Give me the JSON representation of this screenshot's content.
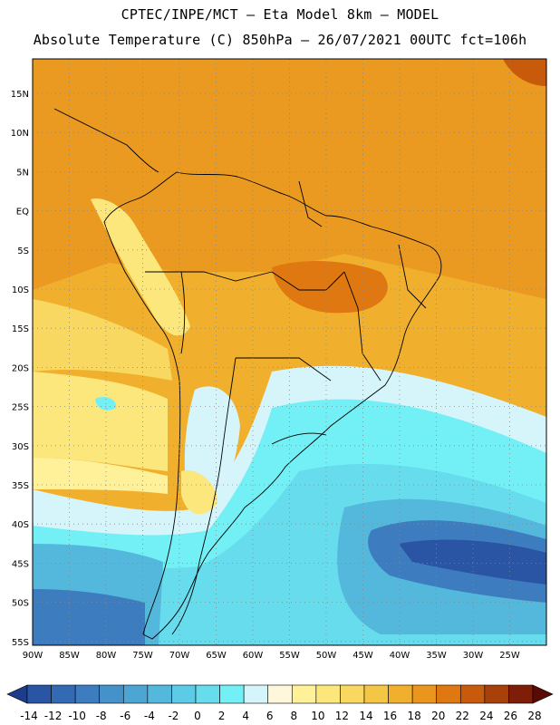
{
  "header": {
    "line1": "CPTEC/INPE/MCT –  Eta Model 8km – MODEL",
    "line2": "Absolute Temperature (C) 850hPa – 26/07/2021 00UTC fct=106h"
  },
  "map": {
    "region": "South America",
    "lat_labels": [
      "15N",
      "10N",
      "5N",
      "EQ",
      "5S",
      "10S",
      "15S",
      "20S",
      "25S",
      "30S",
      "35S",
      "40S",
      "45S",
      "50S",
      "55S"
    ],
    "lon_labels": [
      "90W",
      "85W",
      "80W",
      "75W",
      "70W",
      "65W",
      "60W",
      "55W",
      "50W",
      "45W",
      "40W",
      "35W",
      "30W",
      "25W"
    ],
    "field": "Absolute Temperature (C) 850hPa"
  },
  "colorbar": {
    "labels": [
      "-14",
      "-12",
      "-10",
      "-8",
      "-6",
      "-4",
      "-2",
      "0",
      "2",
      "4",
      "6",
      "8",
      "10",
      "12",
      "14",
      "16",
      "18",
      "20",
      "22",
      "24",
      "26",
      "28"
    ],
    "colors": [
      "#1e3c8c",
      "#2a55a5",
      "#3469b3",
      "#3d7dbf",
      "#4591c9",
      "#4ca5d3",
      "#53b8dc",
      "#5ccbe5",
      "#66dcec",
      "#73f0f5",
      "#d5f5fb",
      "#fff7dc",
      "#fff09a",
      "#fce77c",
      "#f8d860",
      "#f4c646",
      "#f0b02e",
      "#ea961e",
      "#e07812",
      "#c85a0c",
      "#a8400a",
      "#7e1e08",
      "#5a0a04"
    ]
  }
}
